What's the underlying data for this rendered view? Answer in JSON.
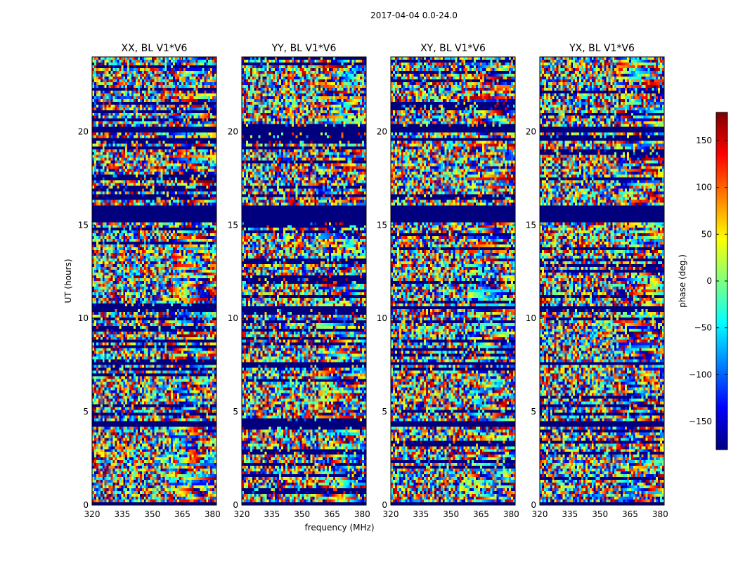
{
  "chart_data": {
    "type": "heatmap",
    "suptitle": "2017-04-04 0.0-24.0",
    "xlabel": "frequency (MHz)",
    "ylabel": "UT (hours)",
    "xlim": [
      320,
      382
    ],
    "ylim": [
      0,
      24
    ],
    "xticks": [
      320,
      335,
      350,
      365,
      380
    ],
    "yticks": [
      0,
      5,
      10,
      15,
      20
    ],
    "panels": [
      {
        "title": "XX, BL V1*V6",
        "polarization": "XX"
      },
      {
        "title": "YY, BL V1*V6",
        "polarization": "YY"
      },
      {
        "title": "XY, BL V1*V6",
        "polarization": "XY"
      },
      {
        "title": "YX, BL V1*V6",
        "polarization": "YX"
      }
    ],
    "blank_bands_hours": [
      [
        15.2,
        16.0
      ],
      [
        7.5,
        7.7
      ],
      [
        4.25,
        4.45
      ],
      [
        19.9,
        20.3
      ],
      [
        19.5,
        19.65
      ],
      [
        10.5,
        10.6
      ],
      [
        0.0,
        0.1
      ]
    ],
    "colorbar": {
      "label": "phase (deg.)",
      "min": -180,
      "max": 180,
      "ticks": [
        150,
        100,
        50,
        0,
        -50,
        -100,
        -150
      ],
      "tick_labels": [
        "150",
        "100",
        "50",
        "0",
        "−50",
        "−100",
        "−150"
      ],
      "colormap": "jet",
      "colors": [
        "#00007f",
        "#0000ff",
        "#007fff",
        "#00ffff",
        "#7fff7f",
        "#ffff00",
        "#ff7f00",
        "#ff0000",
        "#7f0000"
      ]
    }
  }
}
